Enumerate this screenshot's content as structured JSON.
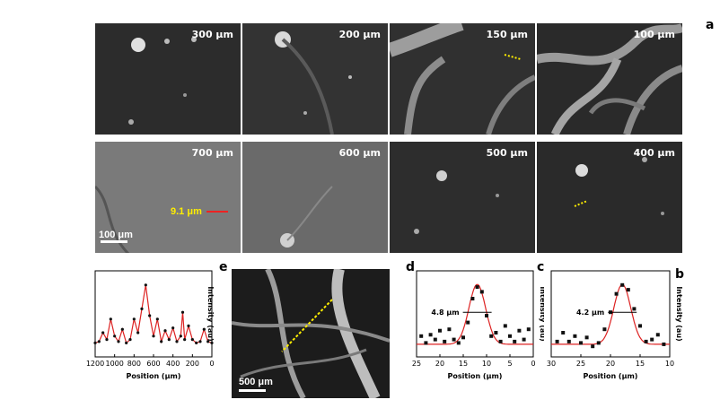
{
  "figure": {
    "panel_letters": [
      "a",
      "b",
      "c",
      "d",
      "e"
    ],
    "depth_labels_row1": [
      "100 μm",
      "150 μm",
      "200 μm",
      "300 μm"
    ],
    "depth_labels_row2": [
      "400 μm",
      "500 μm",
      "600 μm",
      "700 μm"
    ],
    "scalebar_a": "100 μm",
    "measurement_a": "9.1 μm",
    "scalebar_e": "500 μm",
    "colors": {
      "fit": "#dd2222",
      "points": "#111111",
      "yellow": "#ffee00",
      "red": "#ee2222"
    }
  },
  "chart_data": [
    {
      "type": "scatter",
      "panel": "b",
      "xlabel": "Position (μm)",
      "ylabel": "Intensity (au)",
      "xlim": [
        10,
        30
      ],
      "x_ticks": [
        "10",
        "15",
        "20",
        "25",
        "30"
      ],
      "annotation": "4.2 μm",
      "x": [
        11,
        12,
        13,
        14,
        15,
        16,
        17,
        18,
        19,
        20,
        21,
        22,
        23,
        24,
        25,
        26,
        27,
        28,
        29
      ],
      "y": [
        0.08,
        0.22,
        0.15,
        0.12,
        0.35,
        0.6,
        0.88,
        0.95,
        0.82,
        0.55,
        0.3,
        0.1,
        0.05,
        0.18,
        0.1,
        0.2,
        0.12,
        0.25,
        0.12
      ]
    },
    {
      "type": "scatter",
      "panel": "c",
      "xlabel": "Position (μm)",
      "ylabel": "Intensity (au)",
      "xlim": [
        0,
        25
      ],
      "x_ticks": [
        "0",
        "5",
        "10",
        "15",
        "20",
        "25"
      ],
      "annotation": "4.8 μm",
      "x": [
        1,
        2,
        3,
        4,
        5,
        6,
        7,
        8,
        9,
        10,
        11,
        12,
        13,
        14,
        15,
        16,
        17,
        18,
        19,
        20,
        21,
        22,
        23,
        24
      ],
      "y": [
        0.3,
        0.15,
        0.28,
        0.12,
        0.2,
        0.35,
        0.12,
        0.25,
        0.2,
        0.5,
        0.85,
        0.92,
        0.75,
        0.4,
        0.18,
        0.1,
        0.15,
        0.3,
        0.12,
        0.28,
        0.15,
        0.22,
        0.1,
        0.2
      ]
    },
    {
      "type": "line",
      "panel": "e",
      "xlabel": "Position (μm)",
      "ylabel": "Intensity (au)",
      "xlim": [
        0,
        1200
      ],
      "x_ticks": [
        "0",
        "200",
        "400",
        "600",
        "800",
        "1000",
        "1200"
      ],
      "x": [
        0,
        40,
        80,
        120,
        160,
        200,
        240,
        280,
        300,
        320,
        360,
        400,
        440,
        480,
        520,
        560,
        600,
        640,
        680,
        720,
        760,
        800,
        840,
        880,
        920,
        960,
        1000,
        1040,
        1080,
        1120,
        1160,
        1200
      ],
      "y": [
        0.1,
        0.12,
        0.3,
        0.12,
        0.1,
        0.15,
        0.35,
        0.15,
        0.55,
        0.2,
        0.12,
        0.32,
        0.15,
        0.28,
        0.12,
        0.45,
        0.2,
        0.5,
        0.95,
        0.6,
        0.25,
        0.45,
        0.15,
        0.1,
        0.3,
        0.12,
        0.2,
        0.45,
        0.15,
        0.25,
        0.12,
        0.1
      ]
    }
  ]
}
